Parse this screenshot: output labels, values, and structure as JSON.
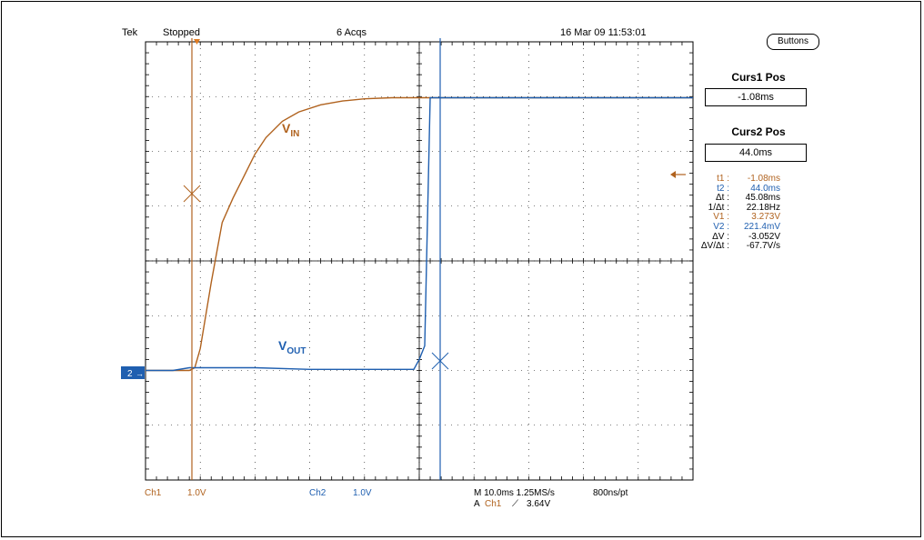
{
  "status_bar": {
    "brand": "Tek",
    "acq_state": "Stopped",
    "acq_count": "6 Acqs",
    "datetime": "16 Mar 09 11:53:01"
  },
  "side_panel": {
    "buttons_label": "Buttons",
    "curs1_title": "Curs1 Pos",
    "curs1_value": "-1.08ms",
    "curs2_title": "Curs2 Pos",
    "curs2_value": "44.0ms"
  },
  "measurements": [
    {
      "label": "t1 :",
      "value": "-1.08ms",
      "channel": "ch1"
    },
    {
      "label": "t2 :",
      "value": "44.0ms",
      "channel": "ch2"
    },
    {
      "label": "Δt :",
      "value": "45.08ms",
      "channel": "none"
    },
    {
      "label": "1/Δt :",
      "value": "22.18Hz",
      "channel": "none"
    },
    {
      "label": "V1 :",
      "value": "3.273V",
      "channel": "ch1"
    },
    {
      "label": "V2 :",
      "value": "221.4mV",
      "channel": "ch2"
    },
    {
      "label": "ΔV :",
      "value": "-3.052V",
      "channel": "none"
    },
    {
      "label": "ΔV/Δt :",
      "value": "-67.7V/s",
      "channel": "none"
    }
  ],
  "trace_labels": {
    "vin_main": "V",
    "vin_sub": "IN",
    "vout_main": "V",
    "vout_sub": "OUT"
  },
  "channel_marker": "2",
  "bottom_bar": {
    "ch1_name": "Ch1",
    "ch1_scale": "1.0V",
    "ch2_name": "Ch2",
    "ch2_scale": "1.0V",
    "timebase": "M 10.0ms 1.25MS/s",
    "record": "800ns/pt",
    "trigger_prefix": "A",
    "trigger_source": "Ch1",
    "trigger_slope": "⟋",
    "trigger_level": "3.64V"
  },
  "colors": {
    "ch1": "#b0621e",
    "ch2": "#1f5fb0",
    "grid": "#000000"
  },
  "chart_data": {
    "type": "line",
    "title": "",
    "xlabel": "",
    "ylabel": "",
    "x_unit": "ms",
    "y_unit": "V",
    "xlim": [
      -50,
      50
    ],
    "ylim": [
      -4,
      4
    ],
    "grid": true,
    "legend": "none",
    "series": [
      {
        "name": "VIN",
        "x": [
          -50,
          -45,
          -42,
          -41,
          -40,
          -38,
          -36,
          -34,
          -32,
          -30,
          -28,
          -25,
          -22,
          -18,
          -14,
          -10,
          -5,
          0,
          10,
          20,
          30,
          40,
          50
        ],
        "y": [
          -2.0,
          -2.0,
          -2.0,
          -1.95,
          -1.6,
          -0.4,
          0.7,
          1.15,
          1.55,
          1.95,
          2.25,
          2.55,
          2.72,
          2.85,
          2.92,
          2.96,
          2.98,
          2.98,
          2.98,
          2.98,
          2.98,
          2.98,
          2.98
        ]
      },
      {
        "name": "VOUT",
        "x": [
          -50,
          -45,
          -42,
          -38,
          -30,
          -20,
          -10,
          -1,
          0,
          1,
          2,
          10,
          20,
          30,
          40,
          50
        ],
        "y": [
          -2.0,
          -2.0,
          -1.95,
          -1.95,
          -1.95,
          -1.98,
          -1.98,
          -1.98,
          -1.8,
          -1.55,
          2.98,
          2.98,
          2.98,
          2.98,
          2.98,
          2.98
        ]
      }
    ],
    "cursors": {
      "curs1_t_ms": -1.08,
      "curs2_t_ms": 44.0,
      "v1": 3.273,
      "v2_mv": 221.4
    }
  }
}
